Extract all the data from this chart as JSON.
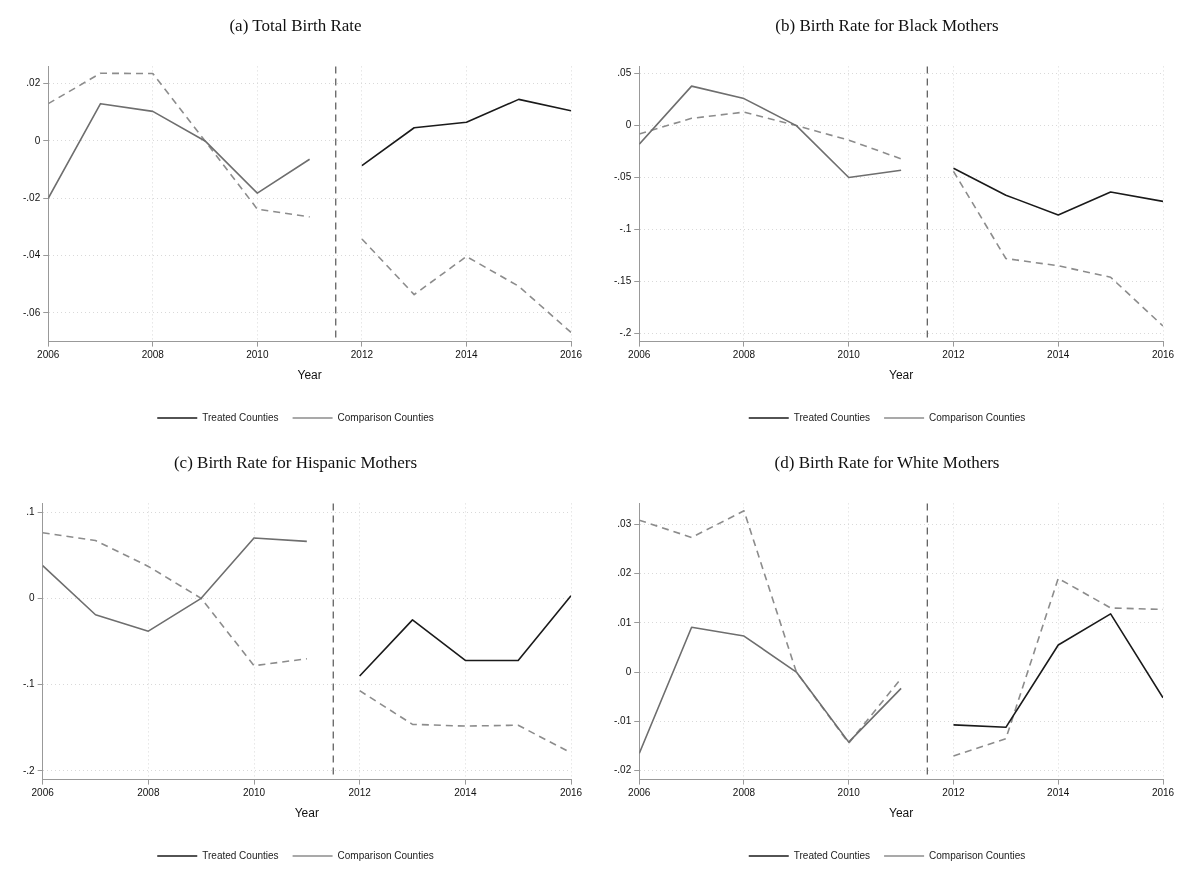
{
  "chart_data": [
    {
      "type": "line",
      "title": "(a) Total Birth Rate",
      "xlabel": "Year",
      "xlim": [
        2006,
        2016
      ],
      "xticks": [
        2006,
        2008,
        2010,
        2012,
        2014,
        2016
      ],
      "ylim": [
        -0.07,
        0.026
      ],
      "yticks": [
        {
          "value": -0.06,
          "label": "-.06"
        },
        {
          "value": -0.04,
          "label": "-.04"
        },
        {
          "value": -0.02,
          "label": "-.02"
        },
        {
          "value": 0,
          "label": "0"
        },
        {
          "value": 0.02,
          "label": ".02"
        }
      ],
      "grid": true,
      "legend": "bottom",
      "marker": "none",
      "ref_lines": [
        {
          "axis": "x",
          "value": 2011.5,
          "color": "#555555",
          "line_style": "dashed"
        }
      ],
      "series": [
        {
          "color": "#6e6e6e",
          "line_style": "solid",
          "x": [
            2006,
            2007,
            2008,
            2009,
            2010,
            2011
          ],
          "values": [
            -0.02,
            0.013,
            0.0103,
            0,
            -0.0182,
            -0.0064
          ]
        },
        {
          "name": "Treated Counties",
          "color": "#1a1a1a",
          "line_style": "solid",
          "x": [
            2012,
            2013,
            2014,
            2015,
            2016
          ],
          "values": [
            -0.0086,
            0.0046,
            0.0065,
            0.0145,
            0.0105
          ]
        },
        {
          "color": "#8c8c8c",
          "line_style": "dashed",
          "x": [
            2006,
            2007,
            2008,
            2009,
            2010,
            2011
          ],
          "values": [
            0.013,
            0.0236,
            0.0235,
            0,
            -0.0238,
            -0.0265
          ]
        },
        {
          "name": "Comparison Counties",
          "color": "#8c8c8c",
          "line_style": "dashed",
          "x": [
            2012,
            2013,
            2014,
            2015,
            2016
          ],
          "values": [
            -0.0342,
            -0.0536,
            -0.0403,
            -0.0507,
            -0.0668
          ]
        }
      ]
    },
    {
      "type": "line",
      "title": "(b) Birth Rate for Black Mothers",
      "xlabel": "Year",
      "xlim": [
        2006,
        2016
      ],
      "xticks": [
        2006,
        2008,
        2010,
        2012,
        2014,
        2016
      ],
      "ylim": [
        -0.208,
        0.057
      ],
      "yticks": [
        {
          "value": -0.2,
          "label": "-.2"
        },
        {
          "value": -0.15,
          "label": "-.15"
        },
        {
          "value": -0.1,
          "label": "-.1"
        },
        {
          "value": -0.05,
          "label": "-.05"
        },
        {
          "value": 0,
          "label": "0"
        },
        {
          "value": 0.05,
          "label": ".05"
        }
      ],
      "grid": true,
      "legend": "bottom",
      "marker": "none",
      "ref_lines": [
        {
          "axis": "x",
          "value": 2011.5,
          "color": "#555555",
          "line_style": "dashed"
        }
      ],
      "series": [
        {
          "color": "#6e6e6e",
          "line_style": "solid",
          "x": [
            2006,
            2007,
            2008,
            2009,
            2010,
            2011
          ],
          "values": [
            -0.018,
            0.038,
            0.026,
            0,
            -0.05,
            -0.043
          ]
        },
        {
          "name": "Treated Counties",
          "color": "#1a1a1a",
          "line_style": "solid",
          "x": [
            2012,
            2013,
            2014,
            2015,
            2016
          ],
          "values": [
            -0.041,
            -0.067,
            -0.086,
            -0.064,
            -0.073
          ]
        },
        {
          "color": "#8c8c8c",
          "line_style": "dashed",
          "x": [
            2006,
            2007,
            2008,
            2009,
            2010,
            2011
          ],
          "values": [
            -0.008,
            0.007,
            0.013,
            0,
            -0.014,
            -0.032
          ]
        },
        {
          "name": "Comparison Counties",
          "color": "#8c8c8c",
          "line_style": "dashed",
          "x": [
            2012,
            2013,
            2014,
            2015,
            2016
          ],
          "values": [
            -0.044,
            -0.128,
            -0.135,
            -0.146,
            -0.193
          ]
        }
      ]
    },
    {
      "type": "line",
      "title": "(c) Birth Rate for Hispanic Mothers",
      "xlabel": "Year",
      "xlim": [
        2006,
        2016
      ],
      "xticks": [
        2006,
        2008,
        2010,
        2012,
        2014,
        2016
      ],
      "ylim": [
        -0.21,
        0.11
      ],
      "yticks": [
        {
          "value": -0.2,
          "label": "-.2"
        },
        {
          "value": -0.1,
          "label": "-.1"
        },
        {
          "value": 0,
          "label": "0"
        },
        {
          "value": 0.1,
          "label": ".1"
        }
      ],
      "grid": true,
      "legend": "bottom",
      "marker": "none",
      "ref_lines": [
        {
          "axis": "x",
          "value": 2011.5,
          "color": "#555555",
          "line_style": "dashed"
        }
      ],
      "series": [
        {
          "color": "#6e6e6e",
          "line_style": "solid",
          "x": [
            2006,
            2007,
            2008,
            2009,
            2010,
            2011
          ],
          "values": [
            0.038,
            -0.019,
            -0.038,
            0,
            0.07,
            0.066
          ]
        },
        {
          "name": "Treated Counties",
          "color": "#1a1a1a",
          "line_style": "solid",
          "x": [
            2012,
            2013,
            2014,
            2015,
            2016
          ],
          "values": [
            -0.09,
            -0.025,
            -0.072,
            -0.072,
            0.003
          ]
        },
        {
          "color": "#8c8c8c",
          "line_style": "dashed",
          "x": [
            2006,
            2007,
            2008,
            2009,
            2010,
            2011
          ],
          "values": [
            0.076,
            0.067,
            0.037,
            0,
            -0.078,
            -0.07
          ]
        },
        {
          "name": "Comparison Counties",
          "color": "#8c8c8c",
          "line_style": "dashed",
          "x": [
            2012,
            2013,
            2014,
            2015,
            2016
          ],
          "values": [
            -0.107,
            -0.146,
            -0.148,
            -0.147,
            -0.179
          ]
        }
      ]
    },
    {
      "type": "line",
      "title": "(d) Birth Rate for White Mothers",
      "xlabel": "Year",
      "xlim": [
        2006,
        2016
      ],
      "xticks": [
        2006,
        2008,
        2010,
        2012,
        2014,
        2016
      ],
      "ylim": [
        -0.0218,
        0.0342
      ],
      "yticks": [
        {
          "value": -0.02,
          "label": "-.02"
        },
        {
          "value": -0.01,
          "label": "-.01"
        },
        {
          "value": 0,
          "label": "0"
        },
        {
          "value": 0.01,
          "label": ".01"
        },
        {
          "value": 0.02,
          "label": ".02"
        },
        {
          "value": 0.03,
          "label": ".03"
        }
      ],
      "grid": true,
      "legend": "bottom",
      "marker": "none",
      "ref_lines": [
        {
          "axis": "x",
          "value": 2011.5,
          "color": "#555555",
          "line_style": "dashed"
        }
      ],
      "series": [
        {
          "color": "#6e6e6e",
          "line_style": "solid",
          "x": [
            2006,
            2007,
            2008,
            2009,
            2010,
            2011
          ],
          "values": [
            -0.0165,
            0.0091,
            0.0073,
            0,
            -0.0142,
            -0.0033
          ]
        },
        {
          "name": "Treated Counties",
          "color": "#1a1a1a",
          "line_style": "solid",
          "x": [
            2012,
            2013,
            2014,
            2015,
            2016
          ],
          "values": [
            -0.0107,
            -0.0112,
            0.0055,
            0.0118,
            -0.0052
          ]
        },
        {
          "color": "#8c8c8c",
          "line_style": "dashed",
          "x": [
            2006,
            2007,
            2008,
            2009,
            2010,
            2011
          ],
          "values": [
            0.0308,
            0.0273,
            0.0327,
            0,
            -0.0144,
            -0.0013
          ]
        },
        {
          "name": "Comparison Counties",
          "color": "#8c8c8c",
          "line_style": "dashed",
          "x": [
            2012,
            2013,
            2014,
            2015,
            2016
          ],
          "values": [
            -0.017,
            -0.0135,
            0.019,
            0.013,
            0.0127
          ]
        }
      ]
    }
  ]
}
